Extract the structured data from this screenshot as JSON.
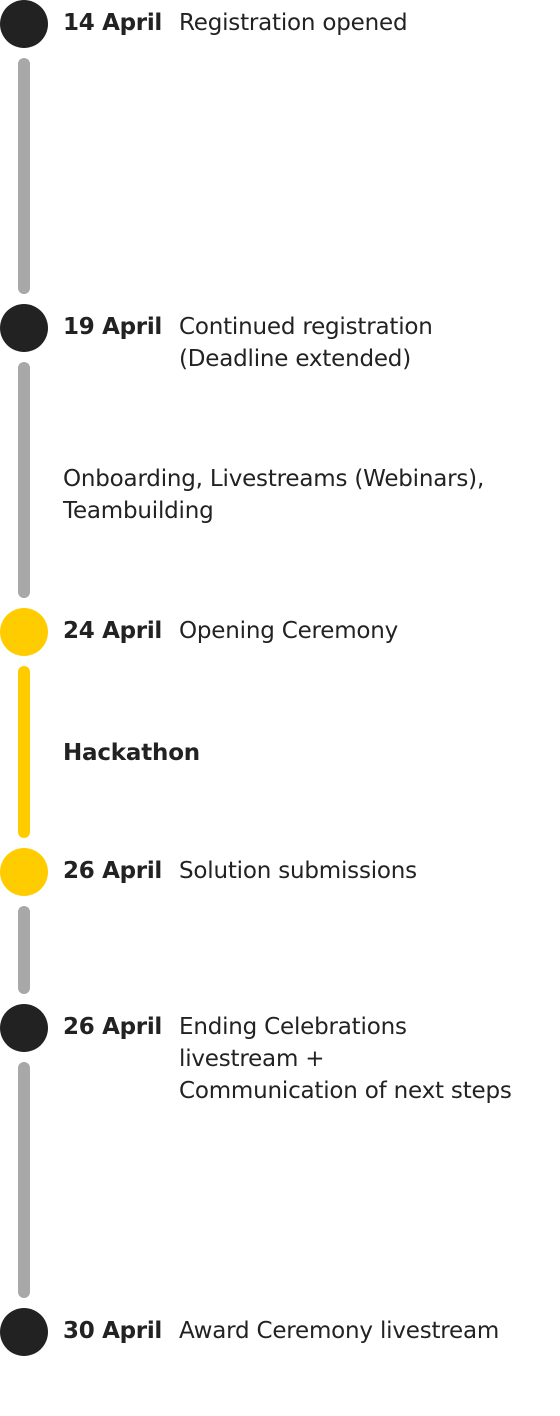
{
  "colors": {
    "milestone_dark": "#222222",
    "milestone_highlight": "#ffcc00",
    "connector_gray": "#a8a8a8",
    "text": "#222222"
  },
  "milestones": [
    {
      "date": "14 April",
      "lines": [
        "Registration opened"
      ],
      "color": "dark"
    },
    {
      "date": "19 April",
      "lines": [
        "Continued registration",
        "(Deadline extended)"
      ],
      "color": "dark"
    },
    {
      "date": "24 April",
      "lines": [
        "Opening Ceremony"
      ],
      "color": "yellow"
    },
    {
      "date": "26 April",
      "lines": [
        "Solution submissions"
      ],
      "color": "yellow"
    },
    {
      "date": "26 April",
      "lines": [
        "Ending Celebrations",
        "livestream +",
        "Communication of next steps"
      ],
      "color": "dark"
    },
    {
      "date": "30 April",
      "lines": [
        "Award Ceremony livestream"
      ],
      "color": "dark"
    }
  ],
  "phases": [
    {
      "lines": [
        "Onboarding, Livestreams (Webinars),",
        "Teambuilding"
      ],
      "emphasis": false
    },
    {
      "lines": [
        "Hackathon"
      ],
      "emphasis": true
    }
  ]
}
